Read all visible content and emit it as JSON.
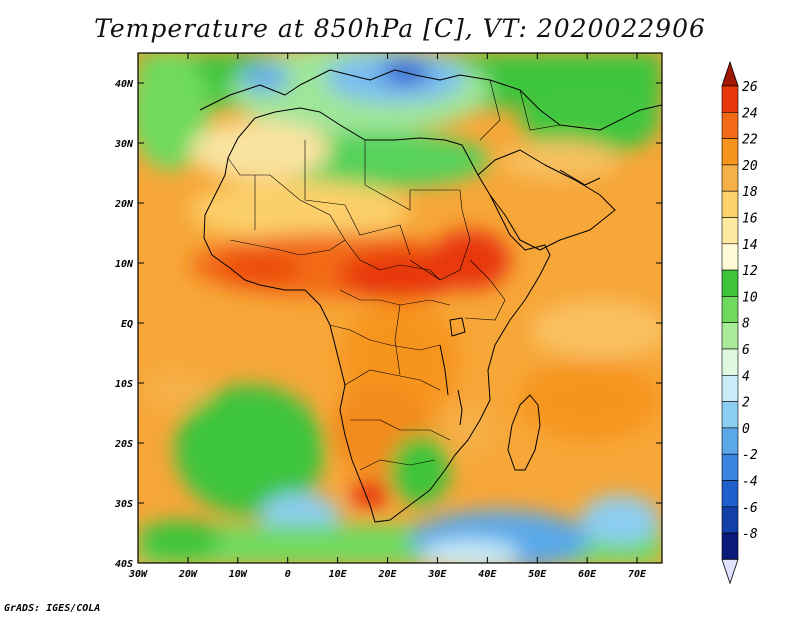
{
  "title": "Temperature at 850hPa [C], VT: 2020022906",
  "credit": "GrADS: IGES/COLA",
  "map": {
    "lon_range": [
      -30,
      75
    ],
    "lat_range": [
      -40,
      45
    ],
    "lat_ticks": [
      {
        "value": 40,
        "label": "40N"
      },
      {
        "value": 30,
        "label": "30N"
      },
      {
        "value": 20,
        "label": "20N"
      },
      {
        "value": 10,
        "label": "10N"
      },
      {
        "value": 0,
        "label": "EQ"
      },
      {
        "value": -10,
        "label": "10S"
      },
      {
        "value": -20,
        "label": "20S"
      },
      {
        "value": -30,
        "label": "30S"
      },
      {
        "value": -40,
        "label": "40S"
      }
    ],
    "lon_ticks": [
      {
        "value": -30,
        "label": "30W"
      },
      {
        "value": -20,
        "label": "20W"
      },
      {
        "value": -10,
        "label": "10W"
      },
      {
        "value": 0,
        "label": "0"
      },
      {
        "value": 10,
        "label": "10E"
      },
      {
        "value": 20,
        "label": "20E"
      },
      {
        "value": 30,
        "label": "30E"
      },
      {
        "value": 40,
        "label": "40E"
      },
      {
        "value": 50,
        "label": "50E"
      },
      {
        "value": 60,
        "label": "60E"
      },
      {
        "value": 70,
        "label": "70E"
      }
    ]
  },
  "colorbar": {
    "labels": [
      "26",
      "24",
      "22",
      "20",
      "18",
      "16",
      "14",
      "12",
      "10",
      "8",
      "6",
      "4",
      "2",
      "0",
      "-2",
      "-4",
      "-6",
      "-8"
    ],
    "colors": [
      "#a01800",
      "#e8380a",
      "#f26a18",
      "#f7941e",
      "#f6b04a",
      "#fbd36a",
      "#fdeaa0",
      "#fffbd6",
      "#3dc43a",
      "#6fda5e",
      "#a8ea98",
      "#dff8e0",
      "#c8ecf8",
      "#8ccdf2",
      "#5aa8e8",
      "#3a84de",
      "#2060cc",
      "#1240a8",
      "#0a1a78",
      "#e0e0ff"
    ]
  }
}
